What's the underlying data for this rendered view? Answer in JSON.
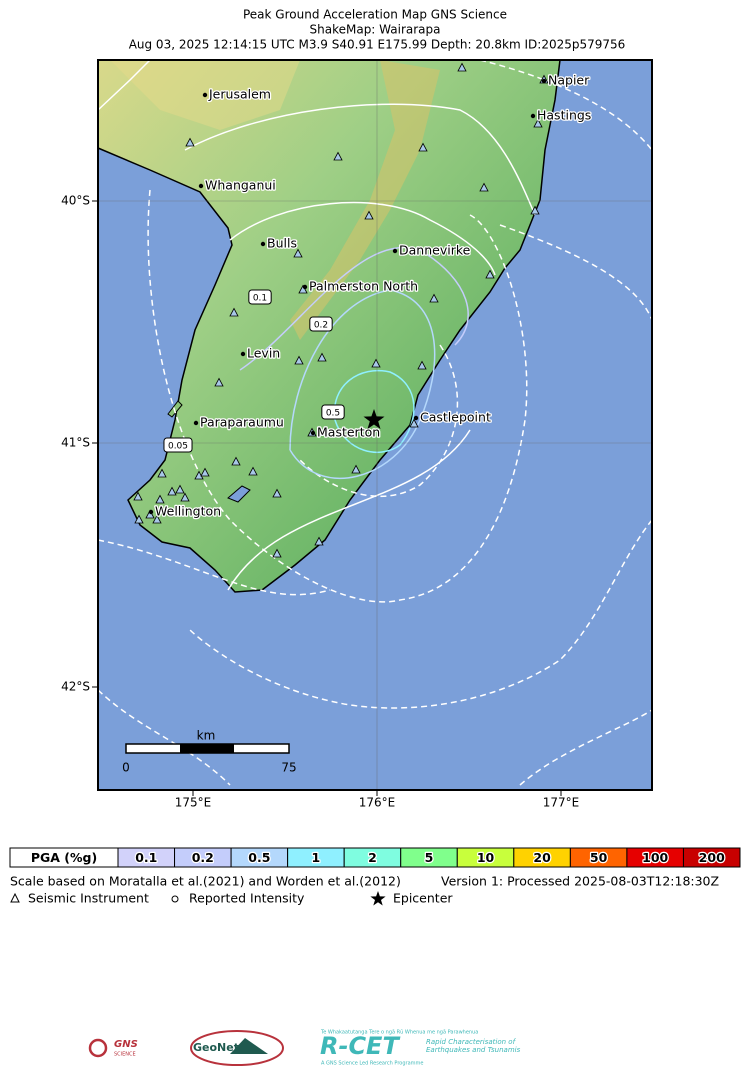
{
  "header": {
    "title": "Peak Ground Acceleration Map GNS Science",
    "subtitle": "ShakeMap: Wairarapa",
    "details": "Aug 03, 2025 12:14:15 UTC M3.9 S40.91 E175.99 Depth: 20.8km ID:2025p579756"
  },
  "map": {
    "places": [
      {
        "label": "Jerusalem"
      },
      {
        "label": "Napier"
      },
      {
        "label": "Hastings"
      },
      {
        "label": "Whanganui"
      },
      {
        "label": "Bulls"
      },
      {
        "label": "Dannevirke"
      },
      {
        "label": "Palmerston North"
      },
      {
        "label": "Levin"
      },
      {
        "label": "Paraparaumu"
      },
      {
        "label": "Masterton"
      },
      {
        "label": "Castlepoint"
      },
      {
        "label": "Wellington"
      }
    ],
    "contour_labels": [
      "0.1",
      "0.2",
      "0.5",
      "0.05"
    ],
    "lat_labels": [
      "40°S",
      "41°S",
      "42°S"
    ],
    "lon_labels": [
      "175°E",
      "176°E",
      "177°E"
    ],
    "scale_bar": {
      "unit": "km",
      "start": "0",
      "end": "75"
    }
  },
  "legend": {
    "title": "PGA (%g)",
    "bins": [
      {
        "label": "0.1",
        "color": "#d2d2fa"
      },
      {
        "label": "0.2",
        "color": "#c4cdfb"
      },
      {
        "label": "0.5",
        "color": "#b4d8fc"
      },
      {
        "label": "1",
        "color": "#8ff0ff"
      },
      {
        "label": "2",
        "color": "#7ffde0"
      },
      {
        "label": "5",
        "color": "#80ff8c"
      },
      {
        "label": "10",
        "color": "#c8ff3c"
      },
      {
        "label": "20",
        "color": "#ffd200"
      },
      {
        "label": "50",
        "color": "#ff6400"
      },
      {
        "label": "100",
        "color": "#e60000"
      },
      {
        "label": "200",
        "color": "#c80000"
      }
    ]
  },
  "notes": {
    "scale": "Scale based on Moratalla et al.(2021) and Worden et al.(2012)",
    "version": "Version 1: Processed 2025-08-03T12:18:30Z",
    "symbols": [
      "Seismic Instrument",
      "Reported Intensity",
      "Epicenter"
    ]
  },
  "logos": {
    "gns": "GNS",
    "gns_sub": "SCIENCE",
    "geonet": "GeoNet",
    "rcet": "R-CET",
    "rcet_top": "Te Whakaatutanga Tere o ngā Rū Whenua me ngā Parawhenua",
    "rcet_sub": "Rapid Characterisation of Earthquakes and Tsunamis",
    "rcet_foot": "A GNS Science Led Research Programme"
  }
}
